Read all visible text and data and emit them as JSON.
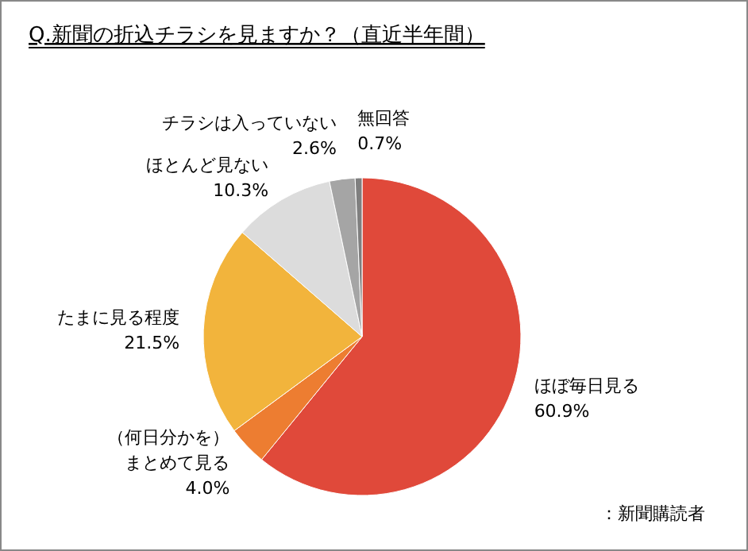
{
  "chart_data": {
    "type": "pie",
    "title": "Q.新聞の折込チラシを見ますか？（直近半年間）",
    "categories": [
      "ほぼ毎日見る",
      "（何日分かを）まとめて見る",
      "たまに見る程度",
      "ほとんど見ない",
      "チラシは入っていない",
      "無回答"
    ],
    "values": [
      60.9,
      4.0,
      21.5,
      10.3,
      2.6,
      0.7
    ],
    "value_labels": [
      "60.9%",
      "4.0%",
      "21.5%",
      "10.3%",
      "2.6%",
      "0.7%"
    ],
    "colors": [
      "#e0493a",
      "#ed7d31",
      "#f2b43c",
      "#dcdcdc",
      "#a5a5a5",
      "#7f7f7f"
    ],
    "annotations": [
      "：新聞購読者"
    ]
  }
}
